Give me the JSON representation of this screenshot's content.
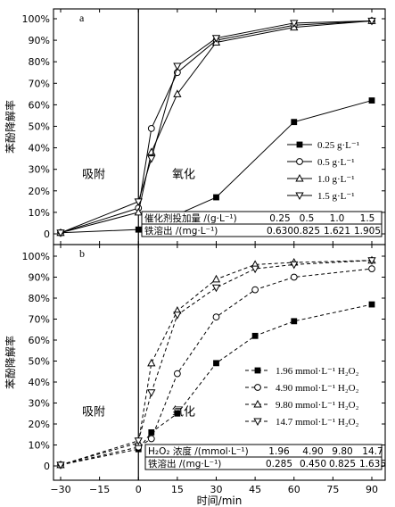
{
  "chart_data": [
    {
      "panel_label": "a",
      "type": "line",
      "ylabel": "苯酚降解率",
      "ylim": [
        0,
        100
      ],
      "yticks": [
        "0",
        "10%",
        "20%",
        "30%",
        "40%",
        "50%",
        "60%",
        "70%",
        "80%",
        "90%",
        "100%"
      ],
      "xlim": [
        -30,
        90
      ],
      "region_labels": [
        "吸附",
        "氧化"
      ],
      "legend_position": "right",
      "series": [
        {
          "name": "0.25 g·L⁻¹",
          "marker": "square-filled",
          "dash": "solid",
          "x": [
            -30,
            0,
            5,
            15,
            30,
            60,
            90
          ],
          "y": [
            0.5,
            2,
            5,
            9,
            17,
            52,
            62
          ]
        },
        {
          "name": "0.5 g·L⁻¹",
          "marker": "circle-open",
          "dash": "solid",
          "x": [
            -30,
            0,
            5,
            15,
            30,
            60,
            90
          ],
          "y": [
            0.5,
            12,
            49,
            75,
            90,
            97,
            99
          ]
        },
        {
          "name": "1.0 g·L⁻¹",
          "marker": "triangle-up-open",
          "dash": "solid",
          "x": [
            -30,
            0,
            5,
            15,
            30,
            60,
            90
          ],
          "y": [
            0.5,
            10,
            38,
            65,
            89,
            96,
            99
          ]
        },
        {
          "name": "1.5 g·L⁻¹",
          "marker": "triangle-down-open",
          "dash": "solid",
          "x": [
            -30,
            0,
            5,
            15,
            30,
            60,
            90
          ],
          "y": [
            0.5,
            15,
            35,
            78,
            91,
            98,
            99
          ]
        }
      ],
      "table": {
        "row1_label": "催化剂投加量 /(g·L⁻¹)",
        "row1_values": [
          "0.25",
          "0.5",
          "1.0",
          "1.5"
        ],
        "row2_label": "铁溶出 /(mg·L⁻¹)",
        "row2_values": [
          "0.630",
          "0.825",
          "1.621",
          "1.905"
        ]
      }
    },
    {
      "panel_label": "b",
      "type": "line",
      "ylabel": "苯酚降解率",
      "ylim": [
        0,
        100
      ],
      "yticks": [
        "0",
        "10%",
        "20%",
        "30%",
        "40%",
        "50%",
        "60%",
        "70%",
        "80%",
        "90%",
        "100%"
      ],
      "xlim": [
        -30,
        90
      ],
      "xticks": [
        "-30",
        "-15",
        "0",
        "15",
        "30",
        "45",
        "60",
        "75",
        "90"
      ],
      "xlabel": "时间/min",
      "region_labels": [
        "吸附",
        "氧化"
      ],
      "legend_position": "right",
      "series": [
        {
          "name": "1.96 mmol·L⁻¹ H₂O₂",
          "marker": "square-filled",
          "dash": "dashed",
          "x": [
            -30,
            0,
            5,
            15,
            30,
            45,
            60,
            90
          ],
          "y": [
            0.5,
            8,
            16,
            25,
            49,
            62,
            69,
            77
          ]
        },
        {
          "name": "4.90 mmol·L⁻¹ H₂O₂",
          "marker": "circle-open",
          "dash": "dashed",
          "x": [
            -30,
            0,
            5,
            15,
            30,
            45,
            60,
            90
          ],
          "y": [
            0.5,
            9,
            13,
            44,
            71,
            84,
            90,
            94
          ]
        },
        {
          "name": "9.80 mmol·L⁻¹ H₂O₂",
          "marker": "triangle-up-open",
          "dash": "dashed",
          "x": [
            -30,
            0,
            5,
            15,
            30,
            45,
            60,
            90
          ],
          "y": [
            0.5,
            11,
            49,
            74,
            89,
            96,
            97,
            98
          ]
        },
        {
          "name": "14.7 mmol·L⁻¹ H₂O₂",
          "marker": "triangle-down-open",
          "dash": "dashed",
          "x": [
            -30,
            0,
            5,
            15,
            30,
            45,
            60,
            90
          ],
          "y": [
            0.5,
            12,
            35,
            72,
            85,
            94,
            96,
            98
          ]
        }
      ],
      "table": {
        "row1_label": "H₂O₂ 浓度 /(mmol·L⁻¹)",
        "row1_values": [
          "1.96",
          "4.90",
          "9.80",
          "14.7"
        ],
        "row2_label": "铁溶出 /(mg·L⁻¹)",
        "row2_values": [
          "0.285",
          "0.450",
          "0.825",
          "1.635"
        ]
      }
    }
  ]
}
